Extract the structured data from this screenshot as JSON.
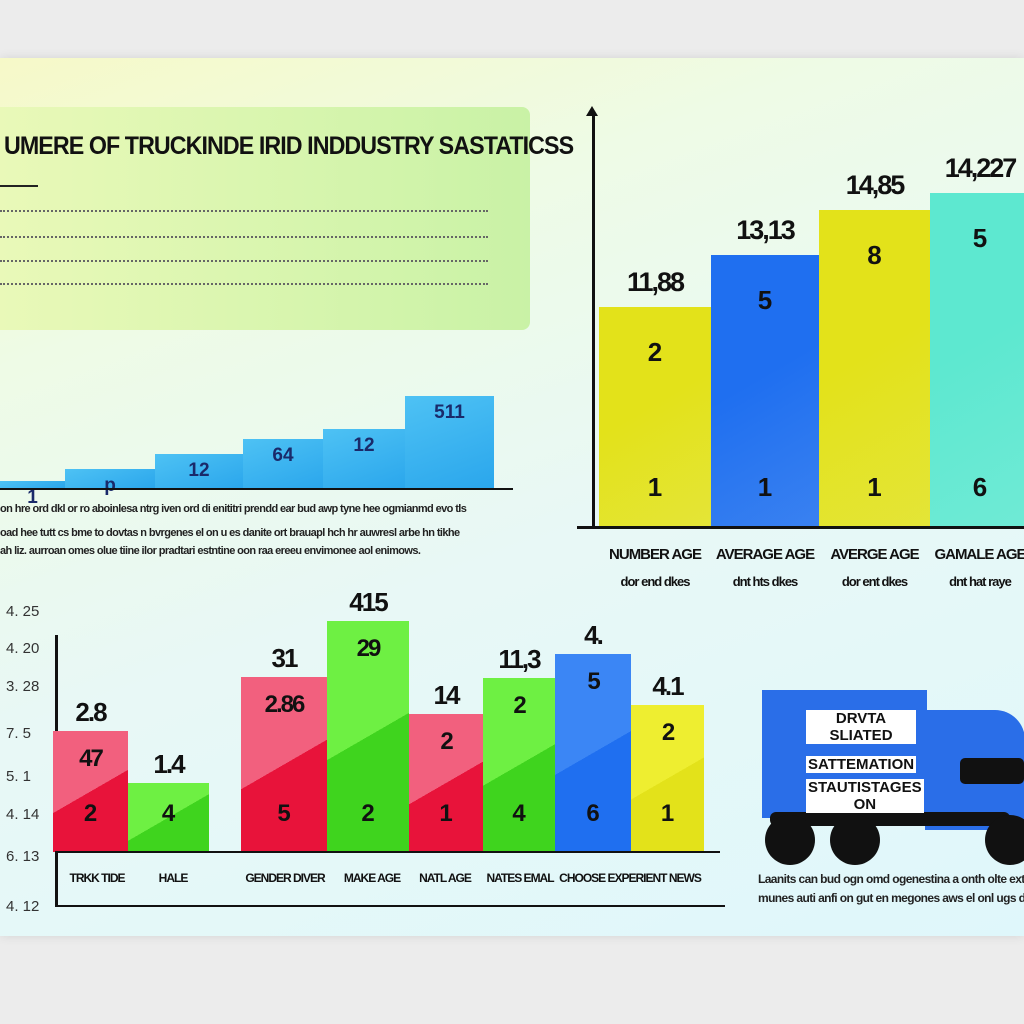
{
  "title": "UMERE OF TRUCKINDE IRID INDDUSTRY SASTATICSS",
  "intro_paragraph": [
    "on hre ord dkl or ro aboinlesa ntrg iven ord di enititri prendd ear bud awp tyne hee ogmianmd evo tls",
    "oad hee tutt cs bme to dovtas n bvrgenes el on u es danite ort brauapl hch hr auwresl arbe hn tikhe",
    "ah liz. aurroan omes olue tiine ilor pradtari estntine oon raa ereeu envimonee aol enimows."
  ],
  "truck_sign": [
    "DRVTA SLIATED",
    "SATTEMATION",
    "STAUTISTAGES ON"
  ],
  "truck_caption": [
    "Laanits can bud ogn omd ogenestina a onth olte extremn",
    "munes auti anfi on gut en megones aws el onl ugs dtta inti"
  ],
  "colors": {
    "red": "#e8133a",
    "pink": "#f2607e",
    "green": "#3fd41e",
    "lightgreen": "#6ef043",
    "blue": "#1f6ff0",
    "yellow": "#e3e21a",
    "teal": "#5de8d0",
    "sky": "#2aa6ec"
  },
  "chart_data": [
    {
      "type": "bar",
      "name_printed": "",
      "bars": [
        {
          "label": "1"
        },
        {
          "label": "p"
        },
        {
          "label": "12"
        },
        {
          "label": "64"
        },
        {
          "label": "12"
        },
        {
          "label": "511"
        }
      ]
    },
    {
      "type": "bar",
      "bars": [
        {
          "value": "11,88",
          "mid": "2",
          "low": "1",
          "color": "yellow",
          "cat": "NUMBER AGE",
          "sub": "dor end dkes"
        },
        {
          "value": "13,13",
          "mid": "5",
          "low": "1",
          "color": "blue",
          "cat": "AVERAGE AGE",
          "sub": "dnt hts dkes"
        },
        {
          "value": "14,85",
          "mid": "8",
          "low": "1",
          "color": "yellow",
          "cat": "AVERGE AGE",
          "sub": "dor ent dkes"
        },
        {
          "value": "14,227",
          "mid": "5",
          "low": "6",
          "color": "teal",
          "cat": "GAMALE AGE",
          "sub": "dnt hat raye"
        }
      ]
    },
    {
      "type": "bar",
      "y_ticks": [
        "4. 25",
        "4. 20",
        "3. 28",
        "7. 5",
        "5. 1",
        "4. 14",
        "6. 13",
        "4. 12"
      ],
      "bars": [
        {
          "value": "2.8",
          "mid": "47",
          "low": "2",
          "color": "red",
          "cat": "TRKK TIDE"
        },
        {
          "value": "1.4",
          "mid": "",
          "low": "4",
          "color": "green",
          "cat": "HALE"
        },
        {
          "value": "31",
          "mid": "2.86",
          "low": "5",
          "color": "red",
          "cat": "GENDER DIVER"
        },
        {
          "value": "415",
          "mid": "29",
          "low": "2",
          "color": "green",
          "cat": "MAKE AGE"
        },
        {
          "value": "14",
          "mid": "2",
          "low": "1",
          "color": "red",
          "cat": "NATL AGE"
        },
        {
          "value": "11,3",
          "mid": "2",
          "low": "4",
          "color": "green",
          "cat": "NATES EMAL"
        },
        {
          "value": "4.",
          "mid": "5",
          "low": "6",
          "color": "blue",
          "cat": "CHOOSE EXPERIENT NEWS"
        },
        {
          "value": "4.1",
          "mid": "2",
          "low": "1",
          "color": "yellow",
          "cat": ""
        }
      ]
    }
  ]
}
